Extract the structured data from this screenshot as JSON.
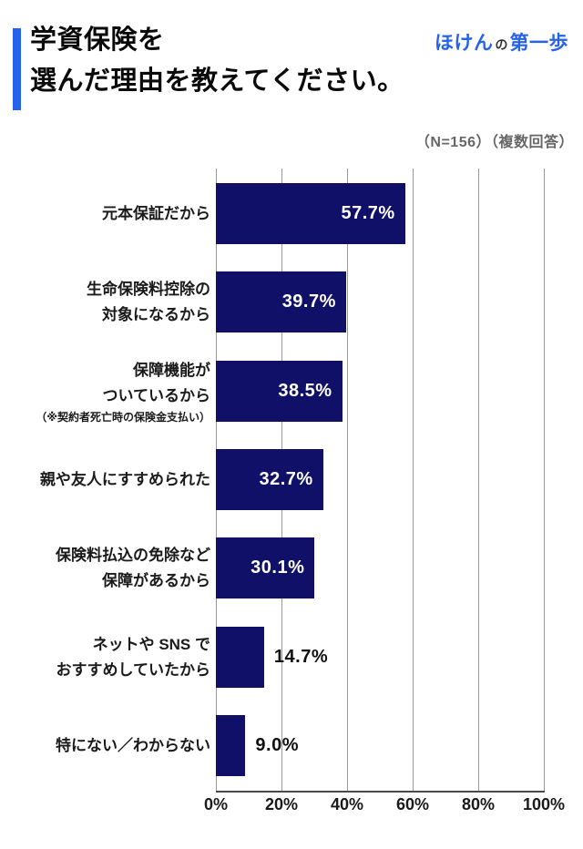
{
  "header": {
    "title_line1": "学資保険を",
    "title_line2": "選んだ理由を教えてください。",
    "logo": {
      "part1": "ほけん",
      "part2": "の",
      "part3": "第一歩"
    },
    "note": "（N=156）（複数回答）"
  },
  "colors": {
    "accent_blue": "#2563eb",
    "bar_navy": "#101069",
    "gridline_gray": "#9a9a9a",
    "note_gray": "#666666"
  },
  "chart_data": {
    "type": "bar",
    "orientation": "horizontal",
    "title": "学資保険を選んだ理由を教えてください。",
    "sample_note": "（N=156）（複数回答）",
    "xlabel": "",
    "ylabel": "",
    "xlim": [
      0,
      100
    ],
    "x_ticks": [
      "0%",
      "20%",
      "40%",
      "60%",
      "80%",
      "100%"
    ],
    "grid": true,
    "legend": false,
    "bar_color": "#101069",
    "categories": [
      "元本保証だから",
      "生命保険料控除の対象になるから",
      "保障機能がついているから（※契約者死亡時の保険金支払い）",
      "親や友人にすすめられた",
      "保険料払込の免除など保障があるから",
      "ネットやSNSでおすすめしていたから",
      "特にない／わからない"
    ],
    "values": [
      57.7,
      39.7,
      38.5,
      32.7,
      30.1,
      14.7,
      9.0
    ],
    "bars": [
      {
        "label_lines": [
          "元本保証だから"
        ],
        "note": "",
        "value": 57.7,
        "display": "57.7%",
        "value_inside": true
      },
      {
        "label_lines": [
          "生命保険料控除の",
          "対象になるから"
        ],
        "note": "",
        "value": 39.7,
        "display": "39.7%",
        "value_inside": true
      },
      {
        "label_lines": [
          "保障機能が",
          "ついているから"
        ],
        "note": "（※契約者死亡時の保険金支払い）",
        "value": 38.5,
        "display": "38.5%",
        "value_inside": true
      },
      {
        "label_lines": [
          "親や友人にすすめられた"
        ],
        "note": "",
        "value": 32.7,
        "display": "32.7%",
        "value_inside": true
      },
      {
        "label_lines": [
          "保険料払込の免除など",
          "保障があるから"
        ],
        "note": "",
        "value": 30.1,
        "display": "30.1%",
        "value_inside": true
      },
      {
        "label_lines": [
          "ネットや SNS で",
          "おすすめしていたから"
        ],
        "note": "",
        "value": 14.7,
        "display": "14.7%",
        "value_inside": false
      },
      {
        "label_lines": [
          "特にない／わからない"
        ],
        "note": "",
        "value": 9.0,
        "display": "9.0%",
        "value_inside": false
      }
    ]
  }
}
